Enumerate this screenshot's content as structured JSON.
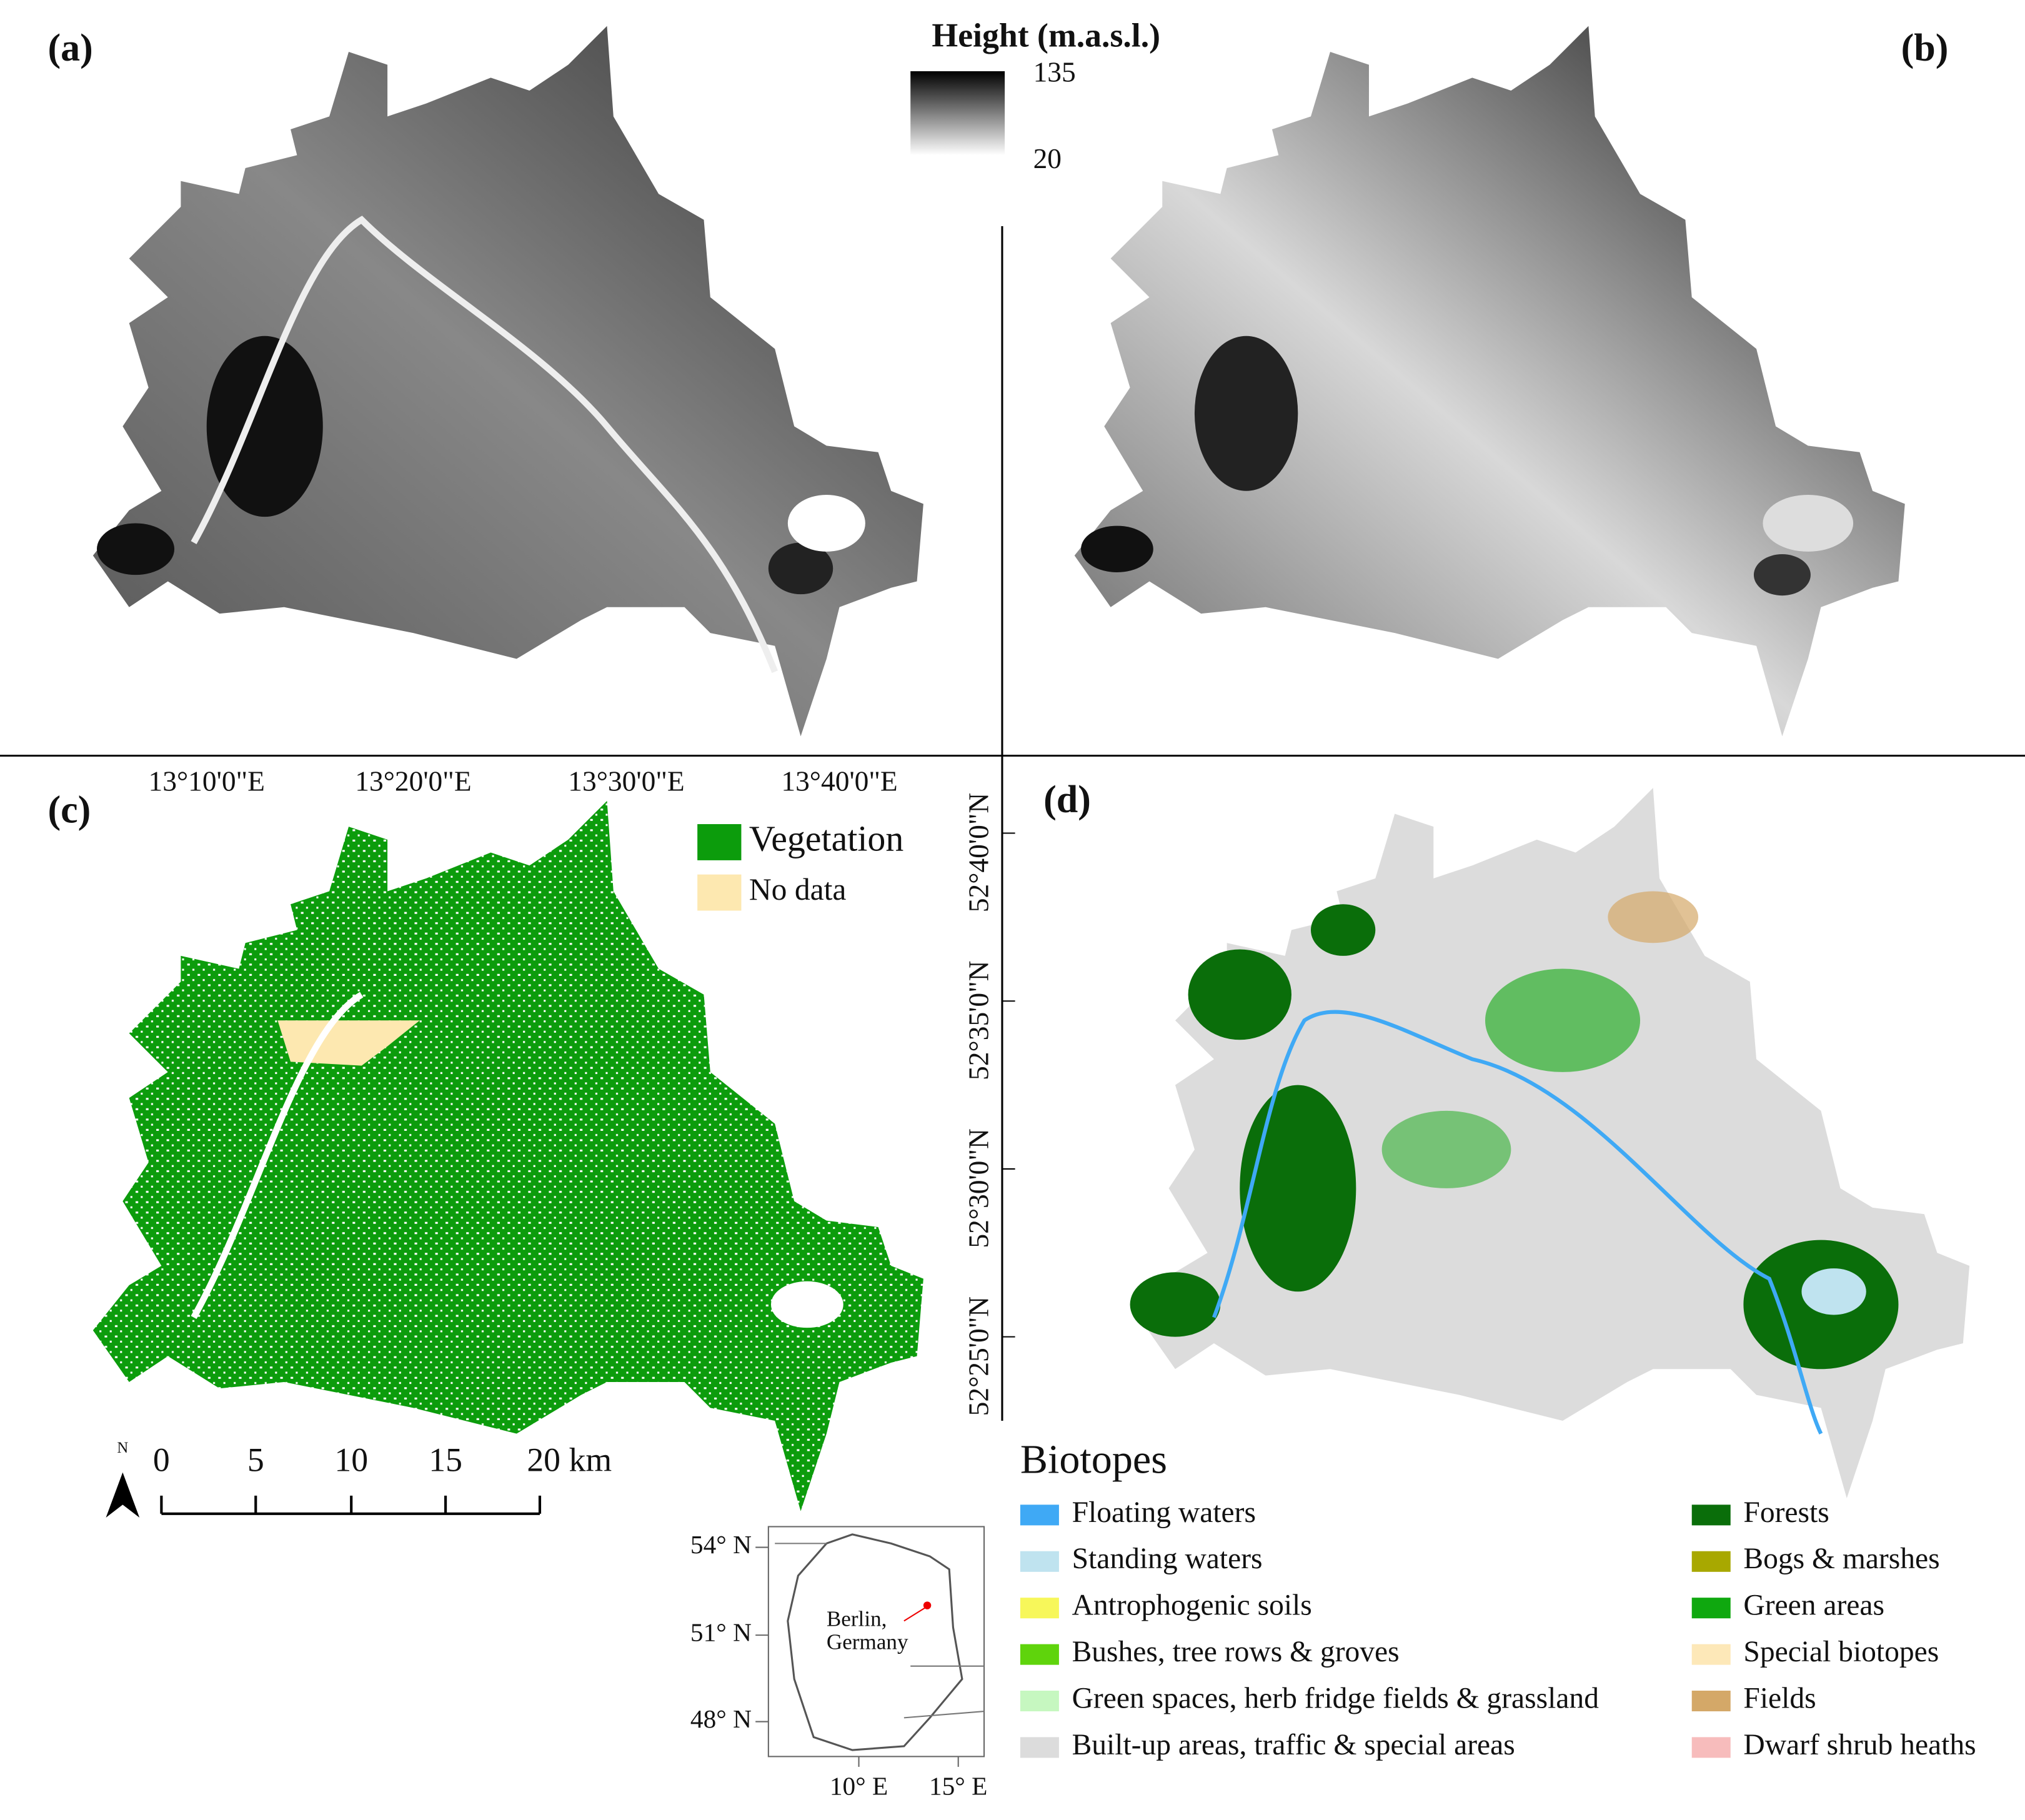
{
  "panels": {
    "a": "(a)",
    "b": "(b)",
    "c": "(c)",
    "d": "(d)"
  },
  "height_legend": {
    "title": "Height (m.a.s.l.)",
    "max": "135",
    "min": "20"
  },
  "longitude_ticks": [
    "13°10'0\"E",
    "13°20'0\"E",
    "13°30'0\"E",
    "13°40'0\"E"
  ],
  "latitude_ticks": [
    "52°40'0\"N",
    "52°35'0\"N",
    "52°30'0\"N",
    "52°25'0\"N"
  ],
  "vegetation_legend": [
    {
      "label": "Vegetation",
      "color": "#0c9c0c"
    },
    {
      "label": "No data",
      "color": "#fde8b0"
    }
  ],
  "scale_bar": {
    "north": "N",
    "labels": [
      "0",
      "5",
      "10",
      "15",
      "20 km"
    ]
  },
  "inset": {
    "lat_labels": [
      "54° N",
      "51° N",
      "48° N"
    ],
    "lon_labels": [
      "10° E",
      "15° E"
    ],
    "place": [
      "Berlin,",
      "Germany"
    ]
  },
  "biotopes": {
    "title": "Biotopes",
    "items": [
      {
        "label": "Floating waters",
        "color": "#3fa9f5"
      },
      {
        "label": "Standing waters",
        "color": "#bfe3ef"
      },
      {
        "label": "Antrophogenic soils",
        "color": "#f7f75a"
      },
      {
        "label": "Bushes,  tree rows & groves",
        "color": "#5fd40c"
      },
      {
        "label": "Green spaces, herb fridge fields & grassland",
        "color": "#c6f7c0"
      },
      {
        "label": "Built-up areas, traffic & special areas",
        "color": "#dcdcdc"
      },
      {
        "label": "Forests",
        "color": "#0a6e0a"
      },
      {
        "label": "Bogs & marshes",
        "color": "#a8a800"
      },
      {
        "label": "Green areas",
        "color": "#0fa80f"
      },
      {
        "label": "Special biotopes",
        "color": "#fde8b8"
      },
      {
        "label": "Fields",
        "color": "#d4a868"
      },
      {
        "label": "Dwarf shrub heaths",
        "color": "#f7bcbc"
      }
    ]
  }
}
